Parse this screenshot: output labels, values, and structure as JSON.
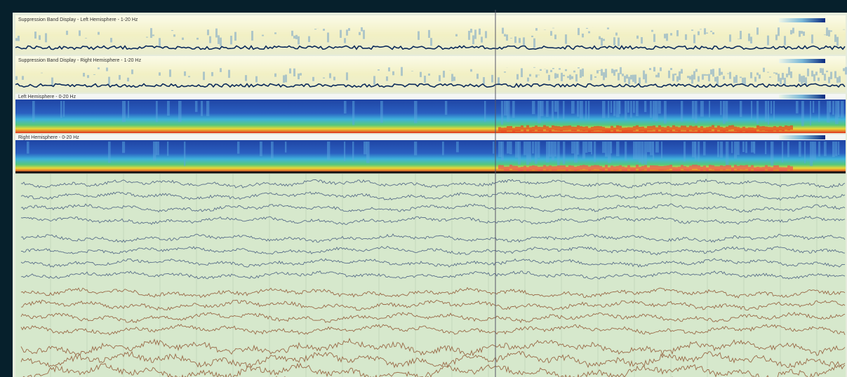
{
  "panels": [
    {
      "title": "Suppression Band Display - Left Hemisphere - 1-20 Hz"
    },
    {
      "title": "Suppression Band Display - Right Hemisphere - 1-20 Hz"
    },
    {
      "title": "Left Hemisphere - 0-20 Hz"
    },
    {
      "title": "Right Hemisphere - 0-20 Hz"
    }
  ]
}
